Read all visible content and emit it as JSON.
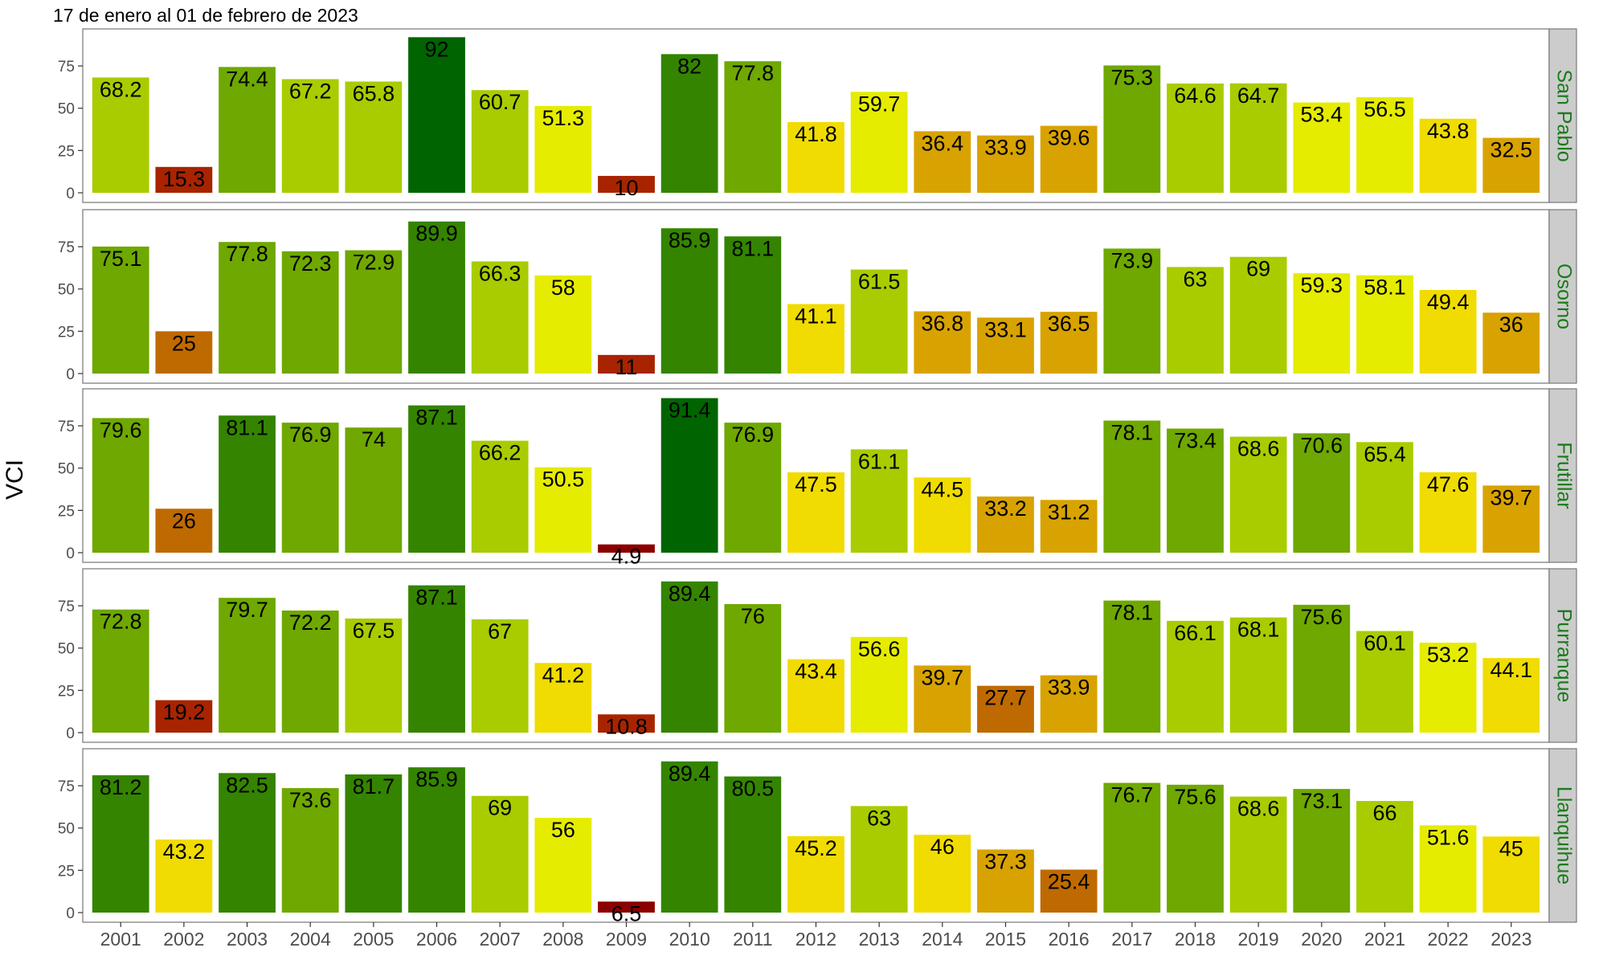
{
  "chart_data": {
    "type": "bar",
    "title": "17 de enero al 01 de febrero de 2023",
    "ylabel": "VCI",
    "xlabel": "",
    "ylim": [
      0,
      95
    ],
    "yticks": [
      0,
      25,
      50,
      75
    ],
    "grid": false,
    "facet_labels_position": "right",
    "categories": [
      "2001",
      "2002",
      "2003",
      "2004",
      "2005",
      "2006",
      "2007",
      "2008",
      "2009",
      "2010",
      "2011",
      "2012",
      "2013",
      "2014",
      "2015",
      "2016",
      "2017",
      "2018",
      "2019",
      "2020",
      "2021",
      "2022",
      "2023"
    ],
    "colors": {
      "strip_background": "#cccccc",
      "strip_text": "#1a7a1a",
      "panel_border": "#7f7f7f",
      "scale": [
        "#8b0000",
        "#a82400",
        "#bf6a00",
        "#d8a300",
        "#f0dc00",
        "#e5ec00",
        "#a8cc00",
        "#6ea800",
        "#348400",
        "#006400"
      ]
    },
    "series": [
      {
        "name": "San Pablo",
        "values": [
          68.2,
          15.3,
          74.4,
          67.2,
          65.8,
          92,
          60.7,
          51.3,
          10,
          82,
          77.8,
          41.8,
          59.7,
          36.4,
          33.9,
          39.6,
          75.3,
          64.6,
          64.7,
          53.4,
          56.5,
          43.8,
          32.5
        ]
      },
      {
        "name": "Osorno",
        "values": [
          75.1,
          25,
          77.8,
          72.3,
          72.9,
          89.9,
          66.3,
          58,
          11,
          85.9,
          81.1,
          41.1,
          61.5,
          36.8,
          33.1,
          36.5,
          73.9,
          63,
          69,
          59.3,
          58.1,
          49.4,
          36
        ]
      },
      {
        "name": "Frutillar",
        "values": [
          79.6,
          26,
          81.1,
          76.9,
          74,
          87.1,
          66.2,
          50.5,
          4.9,
          91.4,
          76.9,
          47.5,
          61.1,
          44.5,
          33.2,
          31.2,
          78.1,
          73.4,
          68.6,
          70.6,
          65.4,
          47.6,
          39.7
        ]
      },
      {
        "name": "Purranque",
        "values": [
          72.8,
          19.2,
          79.7,
          72.2,
          67.5,
          87.1,
          67,
          41.2,
          10.8,
          89.4,
          76,
          43.4,
          56.6,
          39.7,
          27.7,
          33.9,
          78.1,
          66.1,
          68.1,
          75.6,
          60.1,
          53.2,
          44.1
        ]
      },
      {
        "name": "Llanquihue",
        "values": [
          81.2,
          43.2,
          82.5,
          73.6,
          81.7,
          85.9,
          69,
          56,
          6.5,
          89.4,
          80.5,
          45.2,
          63,
          46,
          37.3,
          25.4,
          76.7,
          75.6,
          68.6,
          73.1,
          66,
          51.6,
          45
        ]
      }
    ]
  }
}
